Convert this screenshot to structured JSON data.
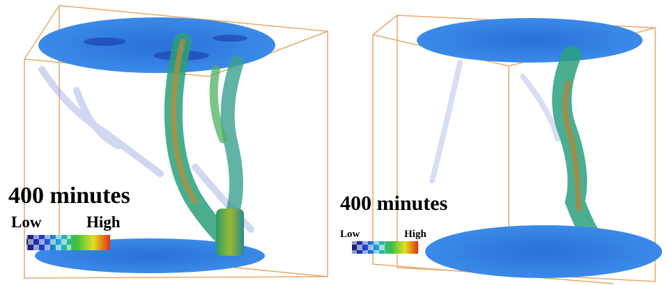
{
  "panels": [
    {
      "label": "400 minutes",
      "low": "Low",
      "high": "High"
    },
    {
      "label": "400 minutes",
      "low": "Low",
      "high": "High"
    }
  ]
}
